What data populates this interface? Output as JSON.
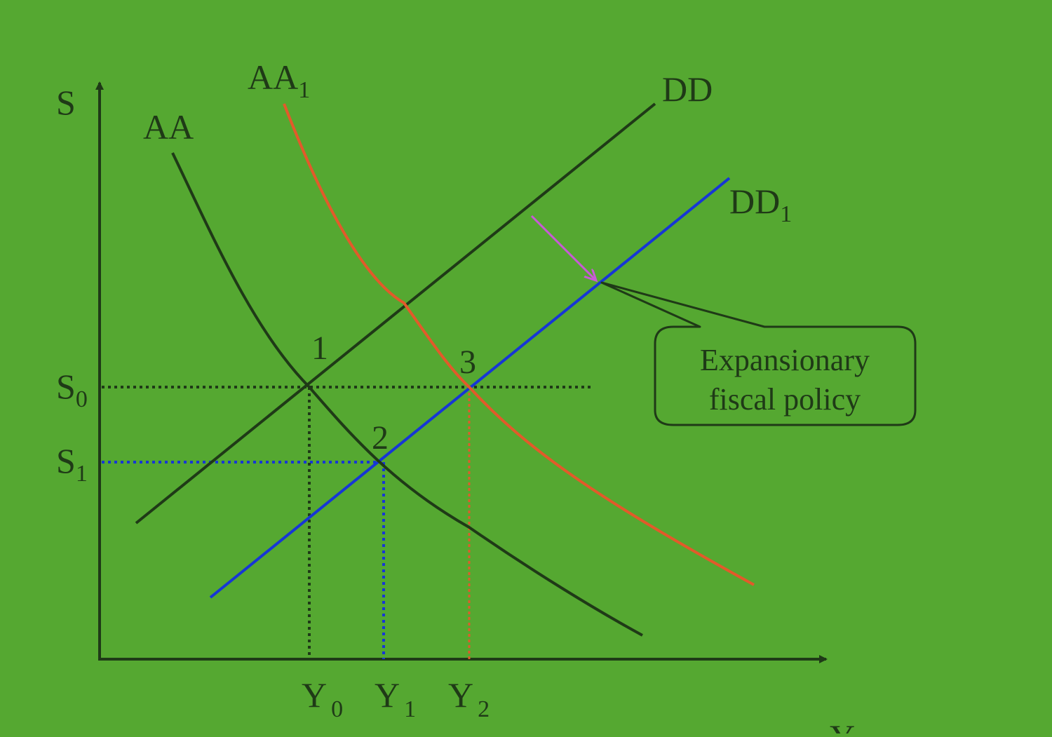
{
  "axes": {
    "y_label": "S",
    "x_label": "Y"
  },
  "curves": {
    "aa": {
      "label": "AA",
      "color": "#1f3a17"
    },
    "aa1": {
      "label": "AA",
      "subscript": "1",
      "color": "#e25a2a"
    },
    "dd": {
      "label": "DD",
      "color": "#1f3a17"
    },
    "dd1": {
      "label": "DD",
      "subscript": "1",
      "color": "#1636d6"
    }
  },
  "levels": {
    "s0": {
      "label": "S",
      "subscript": "0"
    },
    "s1": {
      "label": "S",
      "subscript": "1"
    },
    "y0": {
      "label": "Y",
      "subscript": "0"
    },
    "y1": {
      "label": "Y",
      "subscript": "1"
    },
    "y2": {
      "label": "Y",
      "subscript": "2"
    }
  },
  "points": {
    "p1": "1",
    "p2": "2",
    "p3": "3"
  },
  "callout": {
    "line1": "Expansionary",
    "line2": "fiscal policy"
  },
  "colors": {
    "background": "#55a831",
    "axis": "#1f3a17",
    "guide_black": "#1f3a17",
    "guide_blue": "#1636d6",
    "guide_red": "#e25a2a",
    "shift_arrow": "#c85ad6"
  }
}
